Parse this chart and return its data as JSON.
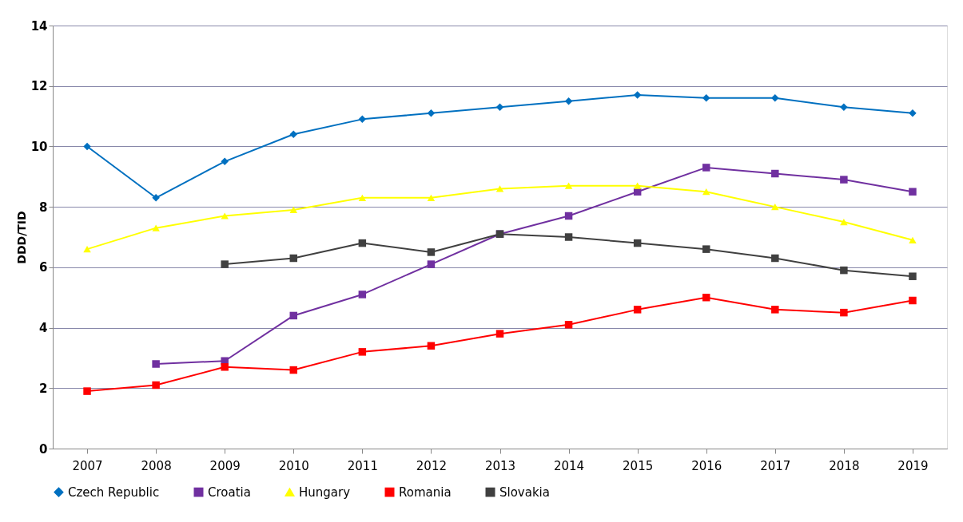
{
  "chart_data": {
    "type": "line",
    "ylabel": "DDD/TID",
    "categories": [
      "2007",
      "2008",
      "2009",
      "2010",
      "2011",
      "2012",
      "2013",
      "2014",
      "2015",
      "2016",
      "2017",
      "2018",
      "2019"
    ],
    "ylim": [
      0,
      14
    ],
    "yticks": [
      0,
      2,
      4,
      6,
      8,
      10,
      12,
      14
    ],
    "grid": "y",
    "legend": "bottom",
    "line_style": "solid",
    "series": [
      {
        "name": "Czech Republic",
        "color": "#0070c0",
        "marker": "diamond",
        "values": [
          10.0,
          8.3,
          9.5,
          10.4,
          10.9,
          11.1,
          11.3,
          11.5,
          11.7,
          11.6,
          11.6,
          11.3,
          11.1
        ]
      },
      {
        "name": "Croatia",
        "color": "#7030a0",
        "marker": "square",
        "values": [
          null,
          2.8,
          2.9,
          4.4,
          5.1,
          6.1,
          7.1,
          7.7,
          8.5,
          9.3,
          9.1,
          8.9,
          8.5
        ]
      },
      {
        "name": "Hungary",
        "color": "#ffff00",
        "marker": "triangle",
        "values": [
          6.6,
          7.3,
          7.7,
          7.9,
          8.3,
          8.3,
          8.6,
          8.7,
          8.7,
          8.5,
          8.0,
          7.5,
          6.9
        ]
      },
      {
        "name": "Romania",
        "color": "#ff0000",
        "marker": "square",
        "values": [
          1.9,
          2.1,
          2.7,
          2.6,
          3.2,
          3.4,
          3.8,
          4.1,
          4.6,
          5.0,
          4.6,
          4.5,
          4.9
        ]
      },
      {
        "name": "Slovakia",
        "color": "#404040",
        "marker": "square",
        "values": [
          null,
          null,
          6.1,
          6.3,
          6.8,
          6.5,
          7.1,
          7.0,
          6.8,
          6.6,
          6.3,
          5.9,
          5.7
        ]
      }
    ]
  }
}
